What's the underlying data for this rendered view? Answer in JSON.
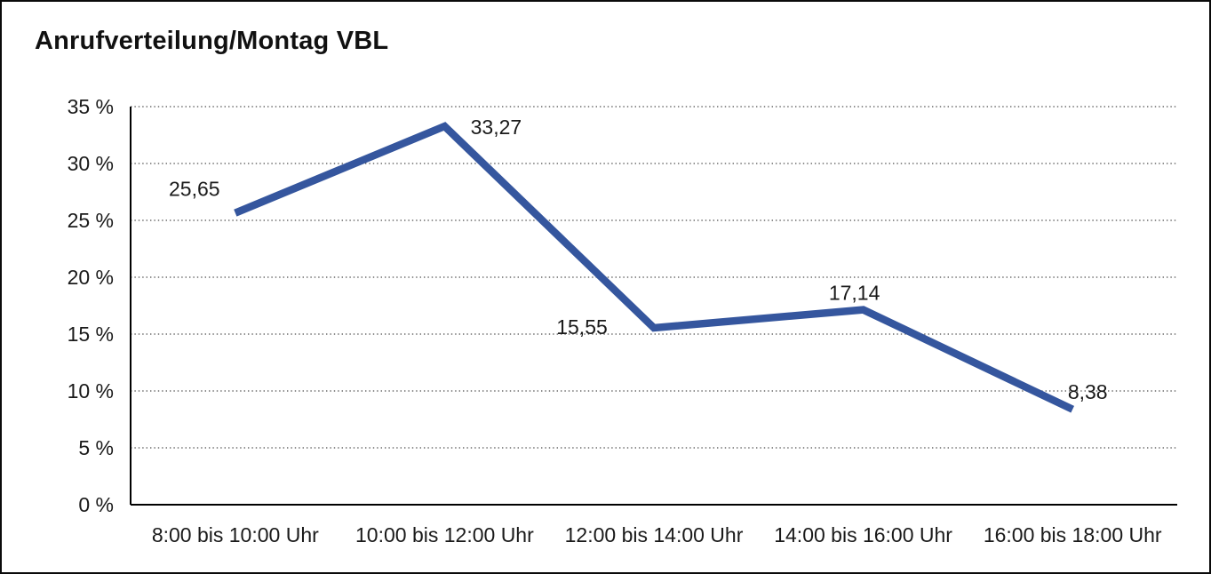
{
  "window": {
    "background": "#ffffff",
    "border_color": "#0a0a0a"
  },
  "title": "Anrufverteilung/Montag VBL",
  "chart_data": {
    "type": "line",
    "title": "Anrufverteilung/Montag VBL",
    "categories": [
      "8:00 bis 10:00 Uhr",
      "10:00 bis 12:00 Uhr",
      "12:00 bis 14:00 Uhr",
      "14:00 bis 16:00 Uhr",
      "16:00 bis 18:00 Uhr"
    ],
    "values": [
      25.65,
      33.27,
      15.55,
      17.14,
      8.38
    ],
    "data_labels": [
      "25,65",
      "33,27",
      "15,55",
      "17,14",
      "8,38"
    ],
    "xlabel": "",
    "ylabel": "",
    "ylim": [
      0,
      35
    ],
    "y_tick_step": 5,
    "y_tick_labels": [
      "0 %",
      "5 %",
      "10 %",
      "15 %",
      "20 %",
      "25 %",
      "30 %",
      "35 %"
    ],
    "grid": "horizontal-dotted",
    "legend": "none",
    "line_color": "#35569E",
    "grid_color": "#4a4a4a",
    "axis_color": "#000000",
    "text_color": "#1a1a1a"
  }
}
